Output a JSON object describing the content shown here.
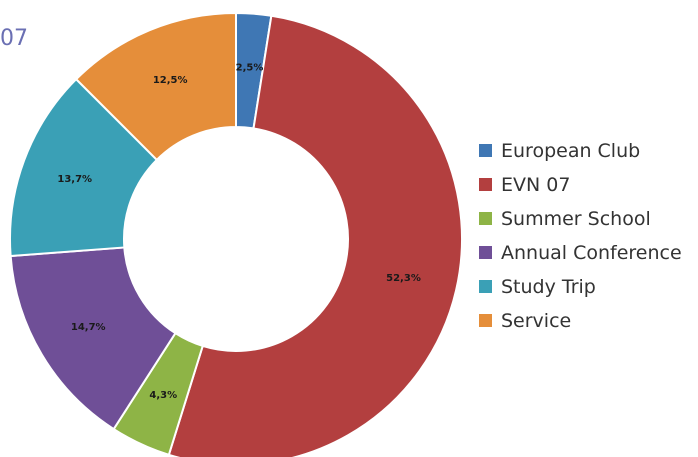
{
  "page": {
    "title_fragment": "07"
  },
  "colors": {
    "European Club": "#3f77b4",
    "EVN 07": "#b33f3f",
    "Summer School": "#8eb446",
    "Annual Conference": "#6f4f97",
    "Study Trip": "#3aa0b6",
    "Service": "#e58e3a"
  },
  "chart_data": {
    "type": "pie",
    "variant": "donut",
    "title": "",
    "start_angle_deg": 0,
    "direction": "clockwise",
    "legend_position": "right",
    "slices": [
      {
        "name": "European Club",
        "value": 2.5,
        "label": "2,5%"
      },
      {
        "name": "EVN 07",
        "value": 52.3,
        "label": "52,3%"
      },
      {
        "name": "Summer School",
        "value": 4.3,
        "label": "4,3%"
      },
      {
        "name": "Annual Conference",
        "value": 14.7,
        "label": "14,7%"
      },
      {
        "name": "Study Trip",
        "value": 13.7,
        "label": "13,7%"
      },
      {
        "name": "Service",
        "value": 12.5,
        "label": "12,5%"
      }
    ]
  }
}
